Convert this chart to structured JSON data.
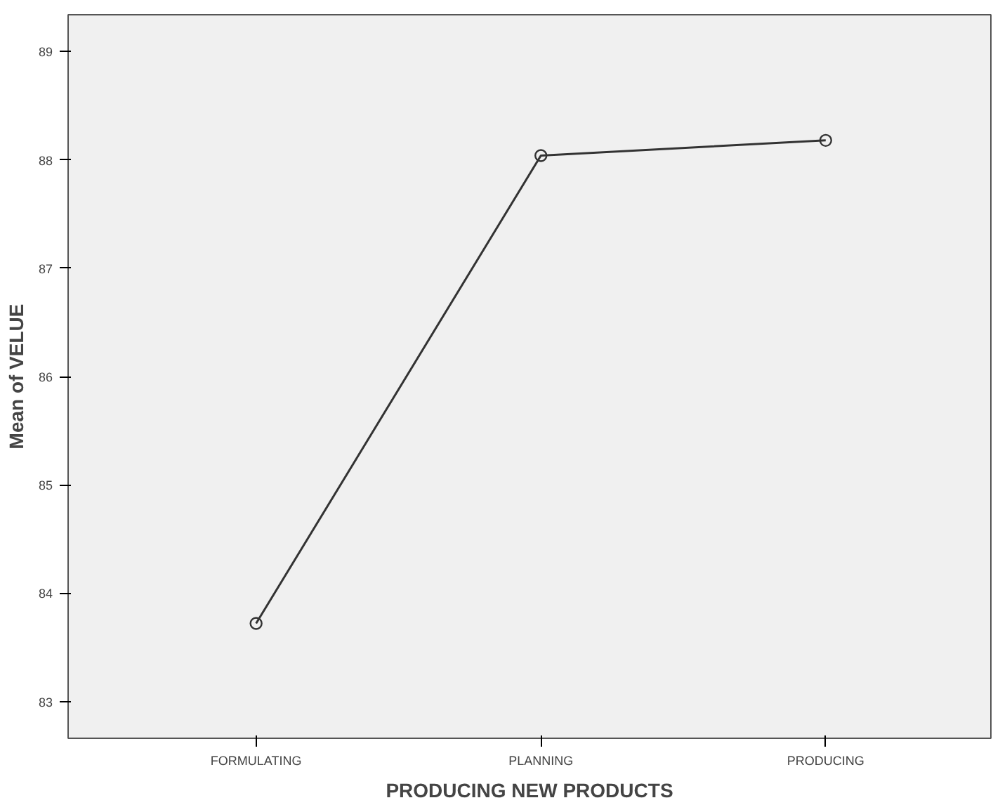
{
  "chart_data": {
    "type": "line",
    "xlabel": "PRODUCING NEW PRODUCTS",
    "ylabel": "Mean of VELUE",
    "categories": [
      "FORMULATING",
      "PLANNING",
      "PRODUCING"
    ],
    "series": [
      {
        "color": "#333333",
        "values": [
          83.72,
          88.04,
          88.18
        ]
      }
    ],
    "ylim": [
      82.66,
      89.34
    ],
    "yticks": [
      83,
      84,
      85,
      86,
      87,
      88,
      89
    ],
    "grid": false,
    "marker": "circle",
    "line_style": "solid"
  }
}
